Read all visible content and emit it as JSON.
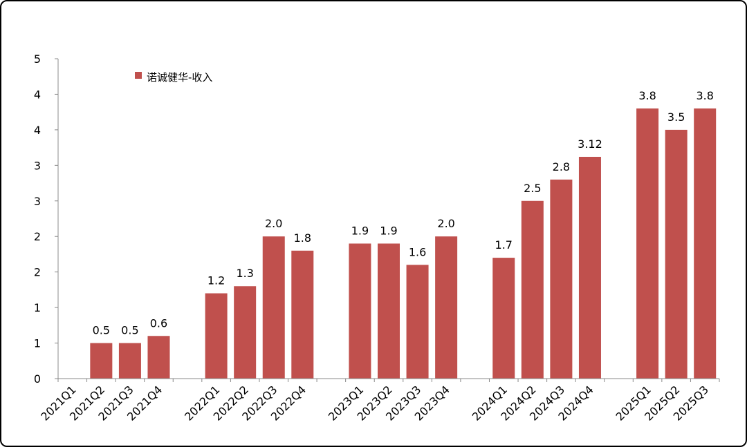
{
  "chart_data": {
    "type": "bar",
    "legend": "诺诚健华-收入",
    "legend_position": "top-left",
    "grid": false,
    "y_tick_labels": [
      "0",
      "1",
      "1",
      "2",
      "2",
      "3",
      "3",
      "4",
      "4",
      "5"
    ],
    "ylim": [
      0,
      4.5
    ],
    "groups": [
      {
        "name": "2021",
        "categories": [
          "2021Q1",
          "2021Q2",
          "2021Q3",
          "2021Q4"
        ],
        "values": [
          null,
          0.5,
          0.5,
          0.6
        ],
        "labels": [
          "",
          "0.5",
          "0.5",
          "0.6"
        ]
      },
      {
        "name": "2022",
        "categories": [
          "2022Q1",
          "2022Q2",
          "2022Q3",
          "2022Q4"
        ],
        "values": [
          1.2,
          1.3,
          2.0,
          1.8
        ],
        "labels": [
          "1.2",
          "1.3",
          "2.0",
          "1.8"
        ]
      },
      {
        "name": "2023",
        "categories": [
          "2023Q1",
          "2023Q2",
          "2023Q3",
          "2023Q4"
        ],
        "values": [
          1.9,
          1.9,
          1.6,
          2.0
        ],
        "labels": [
          "1.9",
          "1.9",
          "1.6",
          "2.0"
        ]
      },
      {
        "name": "2024",
        "categories": [
          "2024Q1",
          "2024Q2",
          "2024Q3",
          "2024Q4"
        ],
        "values": [
          1.7,
          2.5,
          2.8,
          3.12
        ],
        "labels": [
          "1.7",
          "2.5",
          "2.8",
          "3.12"
        ]
      },
      {
        "name": "2025",
        "categories": [
          "2025Q1",
          "2025Q2",
          "2025Q3"
        ],
        "values": [
          3.8,
          3.5,
          3.8
        ],
        "labels": [
          "3.8",
          "3.5",
          "3.8"
        ]
      }
    ],
    "colors": {
      "bar": "#C0504D",
      "axis": "#888888"
    }
  }
}
